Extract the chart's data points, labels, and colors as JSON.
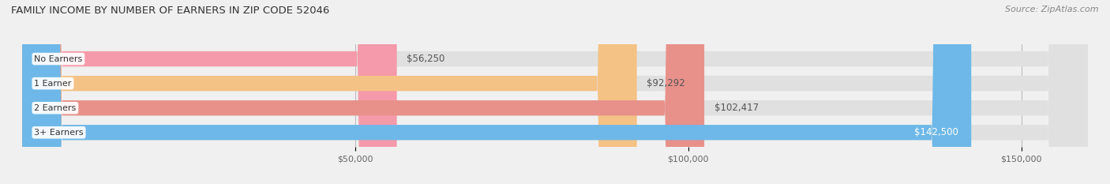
{
  "title": "FAMILY INCOME BY NUMBER OF EARNERS IN ZIP CODE 52046",
  "source": "Source: ZipAtlas.com",
  "categories": [
    "No Earners",
    "1 Earner",
    "2 Earners",
    "3+ Earners"
  ],
  "values": [
    56250,
    92292,
    102417,
    142500
  ],
  "bar_colors": [
    "#f59aaa",
    "#f5c285",
    "#e8908a",
    "#6db8e8"
  ],
  "label_colors": [
    "#555555",
    "#555555",
    "#555555",
    "#ffffff"
  ],
  "x_ticks": [
    50000,
    100000,
    150000
  ],
  "x_tick_labels": [
    "$50,000",
    "$100,000",
    "$150,000"
  ],
  "xlim": [
    0,
    160000
  ],
  "bar_height": 0.62,
  "bg_color": "#f0f0f0",
  "bar_bg_color": "#e0e0e0",
  "title_fontsize": 9.5,
  "source_fontsize": 8,
  "label_fontsize": 8.5,
  "category_fontsize": 8,
  "tick_fontsize": 8
}
